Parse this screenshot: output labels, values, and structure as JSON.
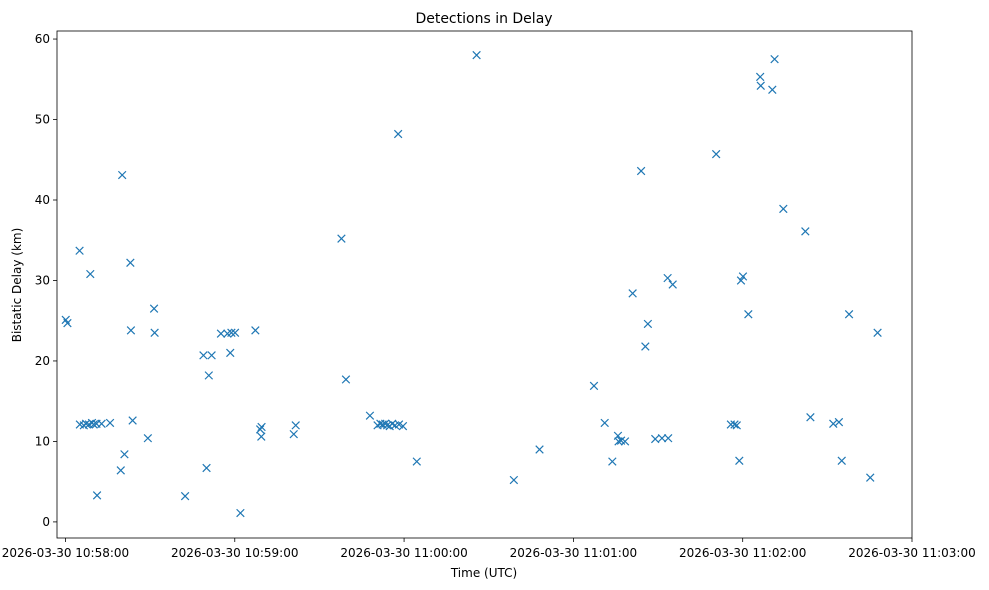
{
  "chart_data": {
    "type": "scatter",
    "title": "Detections in Delay",
    "xlabel": "Time (UTC)",
    "ylabel": "Bistatic Delay (km)",
    "x_unit": "seconds after 10:58:00 UTC on 2026-03-30",
    "xlim": [
      -3,
      300
    ],
    "ylim": [
      -2,
      61
    ],
    "x_ticks": [
      {
        "value": 0,
        "label": "2026-03-30 10:58:00"
      },
      {
        "value": 60,
        "label": "2026-03-30 10:59:00"
      },
      {
        "value": 120,
        "label": "2026-03-30 11:00:00"
      },
      {
        "value": 180,
        "label": "2026-03-30 11:01:00"
      },
      {
        "value": 240,
        "label": "2026-03-30 11:02:00"
      },
      {
        "value": 300,
        "label": "2026-03-30 11:03:00"
      }
    ],
    "y_ticks": [
      0,
      10,
      20,
      30,
      40,
      50,
      60
    ],
    "marker": "x",
    "color": "#1f77b4",
    "grid": false,
    "points": [
      [
        0.1,
        25.1
      ],
      [
        0.7,
        24.7
      ],
      [
        5.0,
        33.7
      ],
      [
        5.1,
        12.1
      ],
      [
        6.5,
        12.0
      ],
      [
        7.3,
        12.2
      ],
      [
        8.3,
        12.1
      ],
      [
        8.8,
        30.8
      ],
      [
        9.4,
        12.3
      ],
      [
        10.0,
        12.1
      ],
      [
        11.0,
        12.2
      ],
      [
        11.2,
        3.3
      ],
      [
        12.8,
        12.2
      ],
      [
        15.8,
        12.3
      ],
      [
        19.6,
        6.4
      ],
      [
        20.1,
        43.1
      ],
      [
        20.9,
        8.4
      ],
      [
        23.0,
        32.2
      ],
      [
        23.2,
        23.8
      ],
      [
        23.8,
        12.6
      ],
      [
        29.2,
        10.4
      ],
      [
        31.4,
        26.5
      ],
      [
        31.6,
        23.5
      ],
      [
        42.4,
        3.2
      ],
      [
        48.9,
        20.7
      ],
      [
        50.0,
        6.7
      ],
      [
        50.8,
        18.2
      ],
      [
        51.8,
        20.7
      ],
      [
        55.1,
        23.4
      ],
      [
        57.4,
        23.4
      ],
      [
        58.4,
        21.0
      ],
      [
        58.8,
        23.5
      ],
      [
        60.1,
        23.5
      ],
      [
        62.0,
        1.1
      ],
      [
        67.3,
        23.8
      ],
      [
        69.0,
        11.5
      ],
      [
        69.4,
        10.6
      ],
      [
        69.5,
        11.8
      ],
      [
        80.9,
        10.9
      ],
      [
        81.6,
        12.0
      ],
      [
        97.8,
        35.2
      ],
      [
        99.4,
        17.7
      ],
      [
        107.9,
        13.2
      ],
      [
        110.6,
        12.0
      ],
      [
        111.6,
        12.2
      ],
      [
        112.4,
        12.1
      ],
      [
        113.3,
        12.2
      ],
      [
        114.0,
        12.0
      ],
      [
        114.9,
        11.9
      ],
      [
        115.8,
        12.2
      ],
      [
        116.8,
        12.0
      ],
      [
        117.9,
        48.2
      ],
      [
        118.2,
        12.1
      ],
      [
        119.6,
        11.9
      ],
      [
        124.5,
        7.5
      ],
      [
        145.7,
        58.0
      ],
      [
        158.9,
        5.2
      ],
      [
        168.0,
        9.0
      ],
      [
        187.3,
        16.9
      ],
      [
        191.1,
        12.3
      ],
      [
        193.8,
        7.5
      ],
      [
        195.8,
        10.7
      ],
      [
        196.0,
        10.0
      ],
      [
        196.9,
        10.1
      ],
      [
        198.3,
        10.0
      ],
      [
        201.0,
        28.4
      ],
      [
        204.0,
        43.6
      ],
      [
        205.5,
        21.8
      ],
      [
        206.4,
        24.6
      ],
      [
        209.0,
        10.3
      ],
      [
        211.4,
        10.4
      ],
      [
        213.4,
        30.3
      ],
      [
        213.6,
        10.4
      ],
      [
        215.2,
        29.5
      ],
      [
        230.6,
        45.7
      ],
      [
        235.8,
        12.1
      ],
      [
        237.1,
        12.1
      ],
      [
        237.9,
        12.0
      ],
      [
        238.8,
        7.6
      ],
      [
        239.4,
        30.0
      ],
      [
        240.1,
        30.5
      ],
      [
        242.0,
        25.8
      ],
      [
        246.2,
        55.3
      ],
      [
        246.4,
        54.2
      ],
      [
        250.5,
        53.7
      ],
      [
        251.3,
        57.5
      ],
      [
        254.4,
        38.9
      ],
      [
        262.2,
        36.1
      ],
      [
        264.0,
        13.0
      ],
      [
        272.1,
        12.2
      ],
      [
        274.1,
        12.4
      ],
      [
        275.1,
        7.6
      ],
      [
        277.7,
        25.8
      ],
      [
        285.2,
        5.5
      ],
      [
        287.8,
        23.5
      ]
    ]
  }
}
